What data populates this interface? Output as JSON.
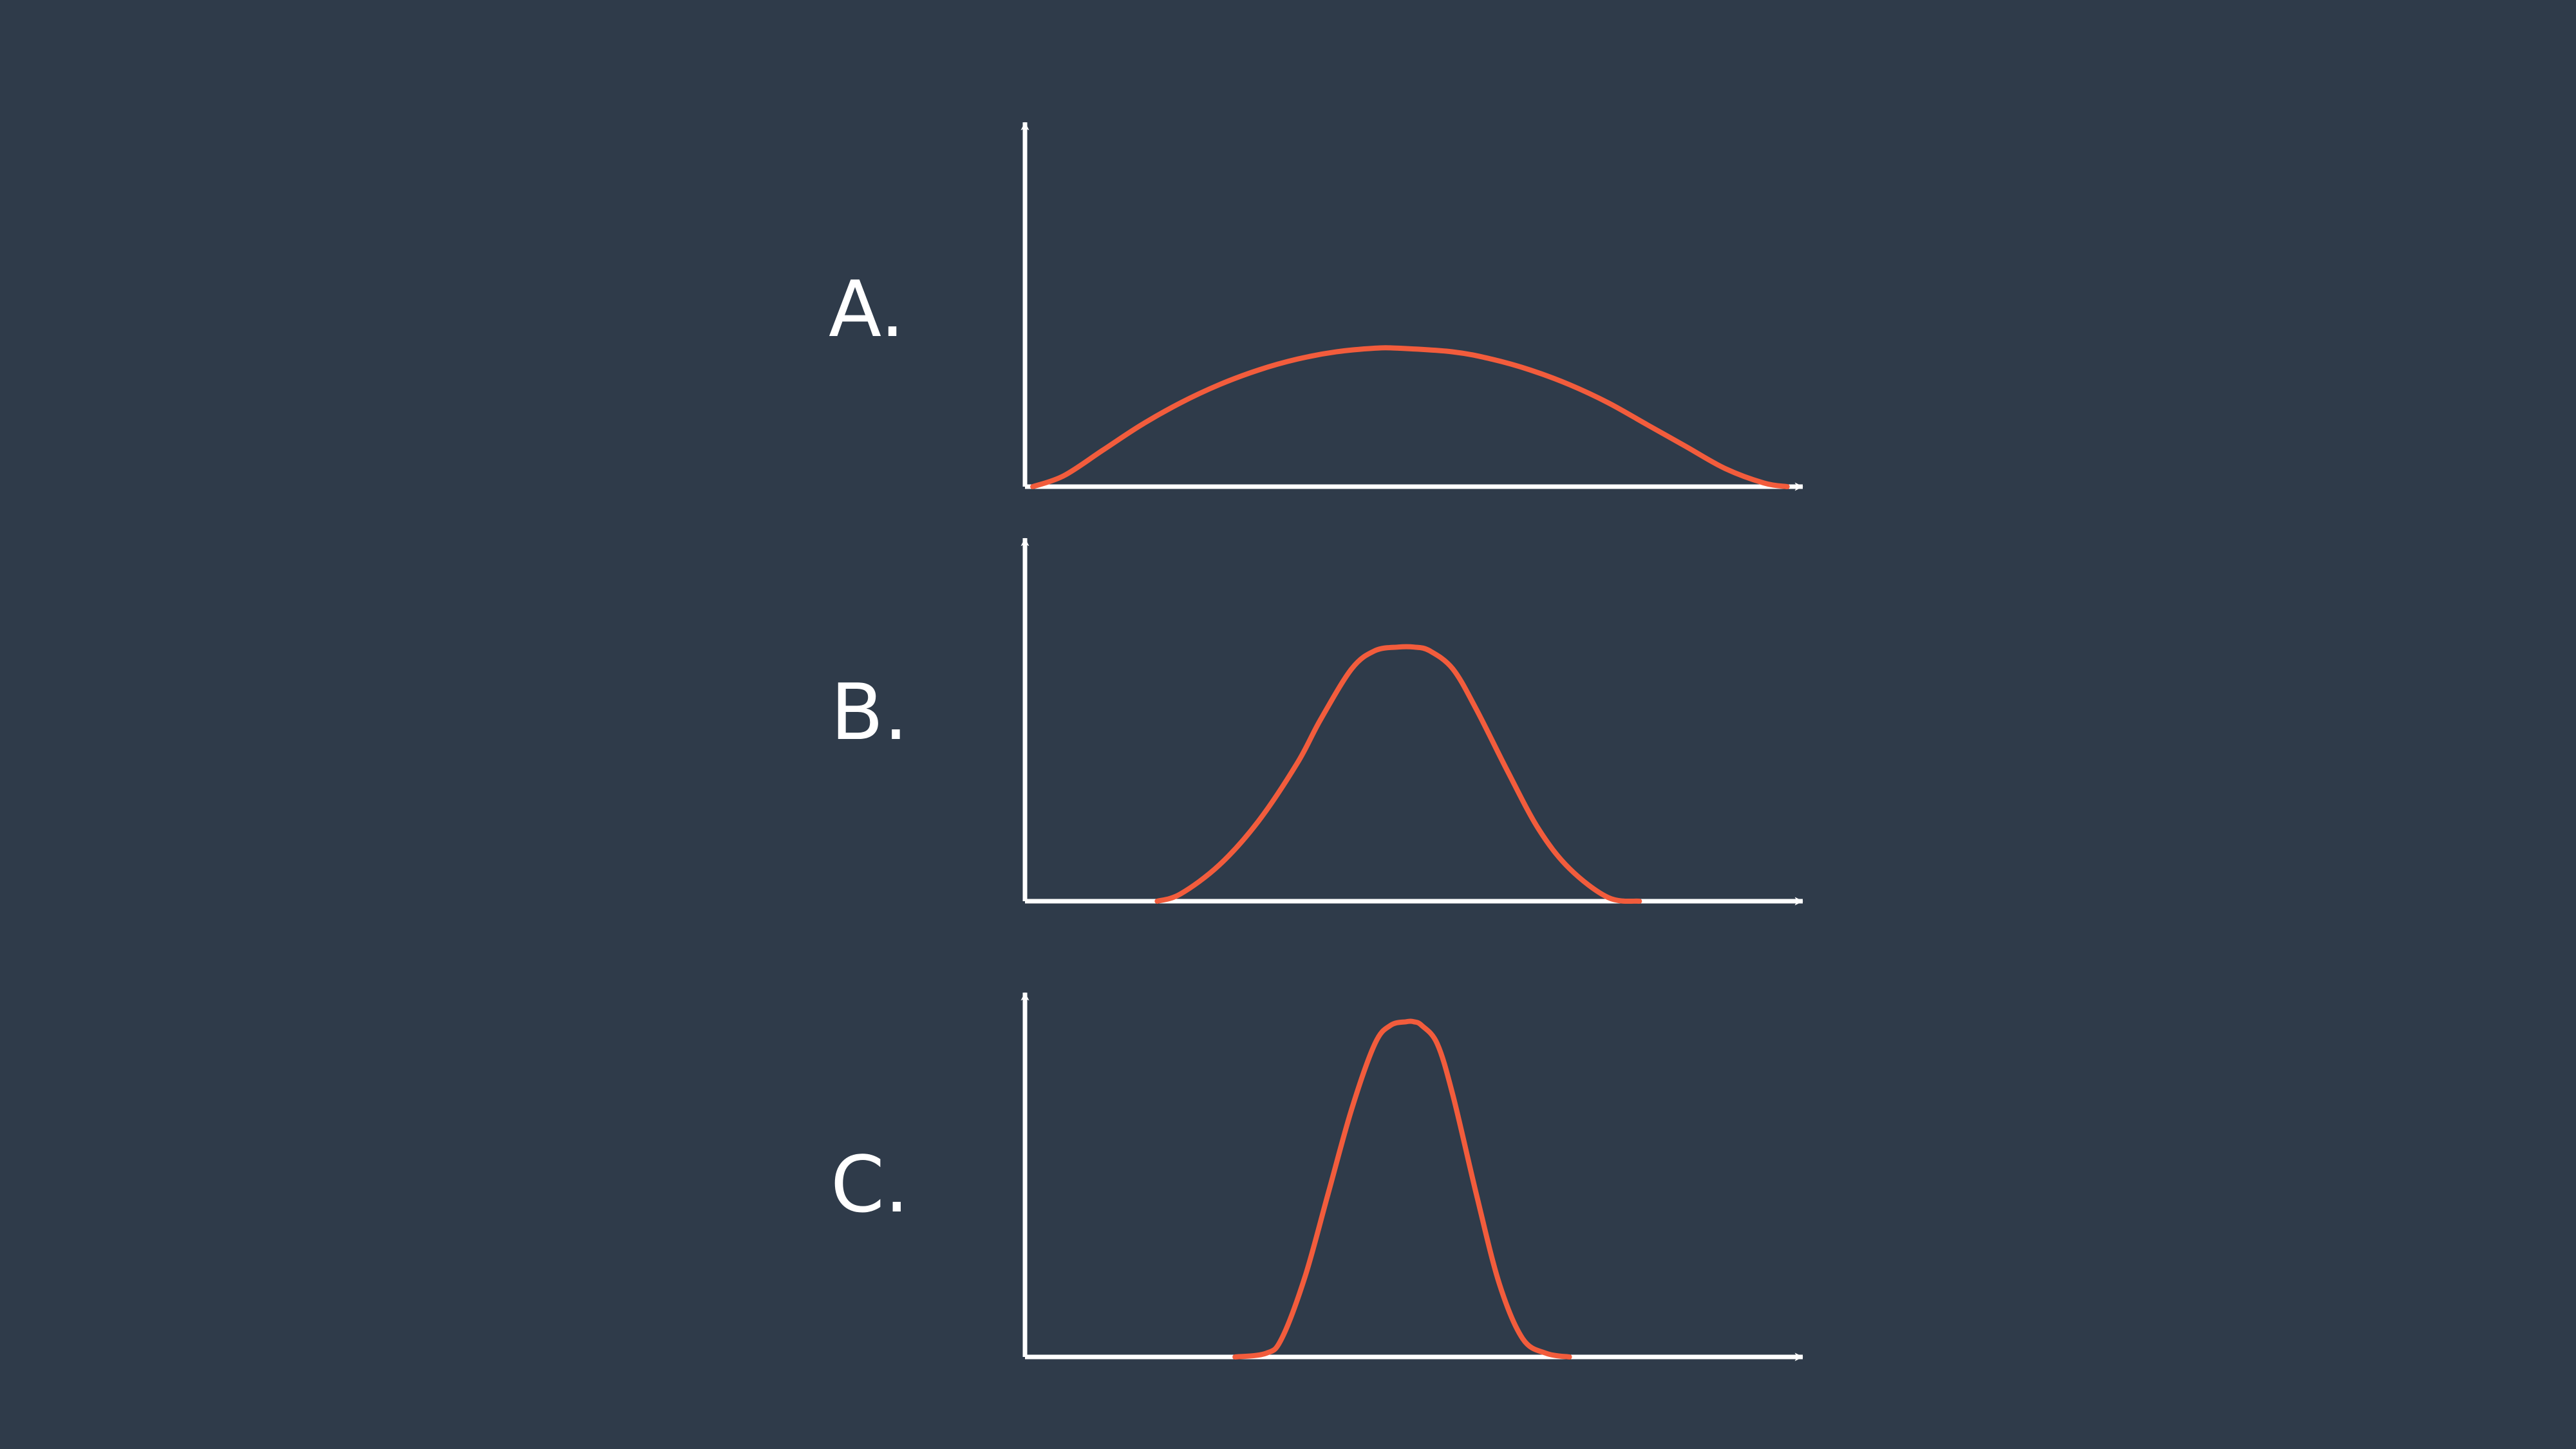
{
  "colors": {
    "background": "#2f3b4a",
    "axes": "#ffffff",
    "curve": "#f25c3c"
  },
  "chart_data": [
    {
      "type": "line",
      "label": "A.",
      "title": "",
      "xlabel": "",
      "ylabel": "",
      "xlim": [
        0,
        1
      ],
      "ylim": [
        0,
        1
      ],
      "x": [
        0.01,
        0.05,
        0.1,
        0.15,
        0.2,
        0.25,
        0.3,
        0.35,
        0.4,
        0.45,
        0.48,
        0.55,
        0.6,
        0.65,
        0.7,
        0.75,
        0.8,
        0.85,
        0.9,
        0.95,
        0.98
      ],
      "y": [
        0.0,
        0.03,
        0.1,
        0.17,
        0.23,
        0.28,
        0.32,
        0.35,
        0.37,
        0.38,
        0.38,
        0.37,
        0.35,
        0.32,
        0.28,
        0.23,
        0.17,
        0.11,
        0.05,
        0.01,
        0.0
      ]
    },
    {
      "type": "line",
      "label": "B.",
      "title": "",
      "xlabel": "",
      "ylabel": "",
      "xlim": [
        0,
        1
      ],
      "ylim": [
        0,
        1
      ],
      "x": [
        0.17,
        0.2,
        0.25,
        0.3,
        0.35,
        0.38,
        0.42,
        0.45,
        0.48,
        0.5,
        0.52,
        0.55,
        0.58,
        0.62,
        0.66,
        0.7,
        0.75,
        0.79
      ],
      "y": [
        0.0,
        0.02,
        0.1,
        0.22,
        0.38,
        0.5,
        0.64,
        0.69,
        0.7,
        0.7,
        0.69,
        0.64,
        0.53,
        0.36,
        0.2,
        0.09,
        0.01,
        0.0
      ]
    },
    {
      "type": "line",
      "label": "C.",
      "title": "",
      "xlabel": "",
      "ylabel": "",
      "xlim": [
        0,
        1
      ],
      "ylim": [
        0,
        1
      ],
      "x": [
        0.27,
        0.31,
        0.33,
        0.36,
        0.39,
        0.42,
        0.45,
        0.47,
        0.49,
        0.5,
        0.51,
        0.53,
        0.55,
        0.58,
        0.61,
        0.64,
        0.67,
        0.7
      ],
      "y": [
        0.0,
        0.01,
        0.05,
        0.22,
        0.45,
        0.68,
        0.86,
        0.91,
        0.92,
        0.92,
        0.91,
        0.86,
        0.72,
        0.45,
        0.2,
        0.05,
        0.01,
        0.0
      ]
    }
  ]
}
